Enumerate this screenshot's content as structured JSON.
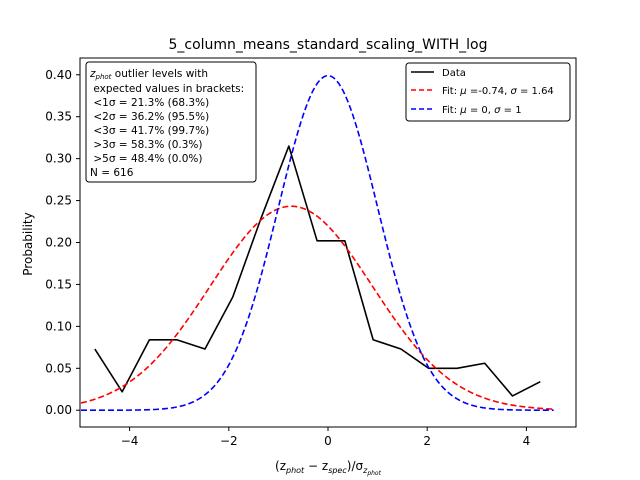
{
  "chart_data": {
    "type": "line",
    "title": "5_column_means_standard_scaling_WITH_log",
    "xlabel_parts": [
      "(z",
      "phot",
      " − z",
      "spec",
      ")/σ",
      "z",
      "phot"
    ],
    "ylabel": "Probability",
    "xlim": [
      -5.0,
      5.0
    ],
    "ylim": [
      -0.02,
      0.42
    ],
    "xticks": [
      -4,
      -2,
      0,
      2,
      4
    ],
    "xtick_labels": [
      "−4",
      "−2",
      "0",
      "2",
      "4"
    ],
    "yticks": [
      0.0,
      0.05,
      0.1,
      0.15,
      0.2,
      0.25,
      0.3,
      0.35,
      0.4
    ],
    "ytick_labels": [
      "0.00",
      "0.05",
      "0.10",
      "0.15",
      "0.20",
      "0.25",
      "0.30",
      "0.35",
      "0.40"
    ],
    "grid": false,
    "legend_position": "top-right",
    "series": [
      {
        "name": "Data",
        "style": "solid",
        "color": "#000000",
        "x": [
          -4.7,
          -4.15,
          -3.6,
          -3.05,
          -2.48,
          -1.92,
          -1.35,
          -0.79,
          -0.22,
          0.34,
          0.91,
          1.47,
          2.03,
          2.6,
          3.16,
          3.72,
          4.28
        ],
        "y": [
          0.073,
          0.022,
          0.084,
          0.084,
          0.073,
          0.135,
          0.229,
          0.315,
          0.202,
          0.202,
          0.084,
          0.073,
          0.05,
          0.05,
          0.056,
          0.017,
          0.034
        ]
      },
      {
        "name": "Fit: μ=-0.74, σ=1.64",
        "legend_parts": [
          "Fit: ",
          "μ",
          " =-0.74, ",
          "σ",
          " = 1.64"
        ],
        "style": "dashed",
        "color": "#ff0000",
        "kind": "gaussian",
        "mu": -0.74,
        "sigma": 1.64,
        "x_range": [
          -4.98,
          4.55
        ]
      },
      {
        "name": "Fit: μ=0, σ=1",
        "legend_parts": [
          "Fit: ",
          "μ",
          " = 0, ",
          "σ",
          " = 1"
        ],
        "style": "dashed",
        "color": "#0000ff",
        "kind": "gaussian",
        "mu": 0,
        "sigma": 1,
        "x_range": [
          -4.98,
          4.55
        ]
      }
    ],
    "annotation": {
      "lines": [
        {
          "parts": [
            "z",
            "phot",
            " outlier levels with"
          ]
        },
        {
          "parts": [
            " expected values in brackets:"
          ]
        },
        {
          "parts": [
            " <1σ = 21.3% (68.3%)"
          ]
        },
        {
          "parts": [
            " <2σ = 36.2% (95.5%)"
          ]
        },
        {
          "parts": [
            " <3σ = 41.7% (99.7%)"
          ]
        },
        {
          "parts": [
            " >3σ = 58.3% (0.3%)"
          ]
        },
        {
          "parts": [
            " >5σ = 48.4% (0.0%)"
          ]
        },
        {
          "parts": [
            "N = 616"
          ]
        }
      ]
    }
  }
}
